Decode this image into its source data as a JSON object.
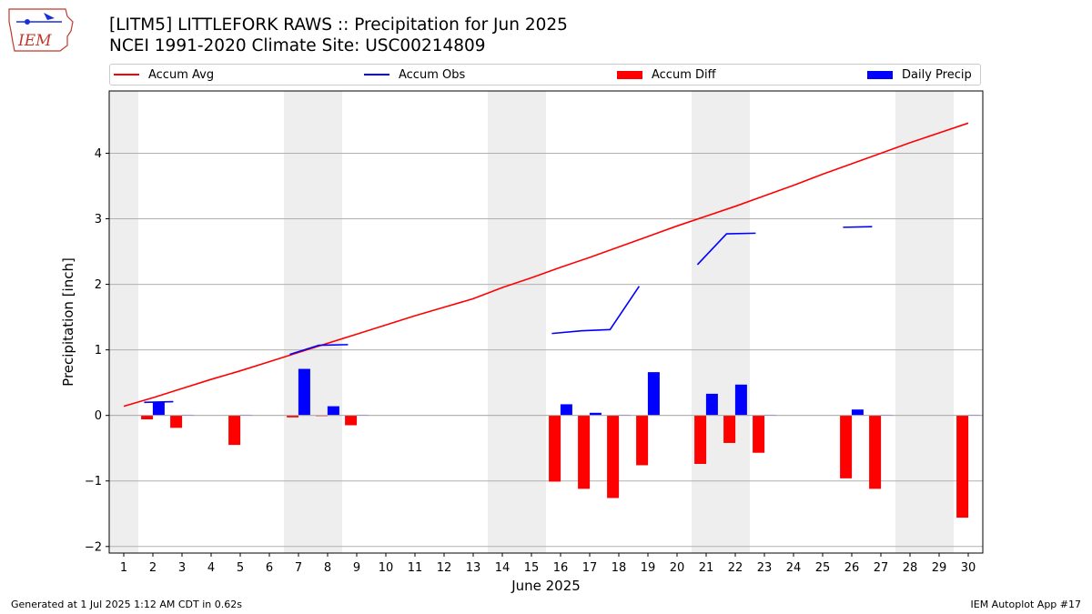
{
  "logo": {
    "text": "IEM"
  },
  "title": {
    "line1": "[LITM5] LITTLEFORK RAWS :: Precipitation for Jun 2025",
    "line2": "NCEI 1991-2020 Climate Site: USC00214809"
  },
  "legend": [
    {
      "label": "Accum Avg",
      "kind": "line",
      "color": "#ff0000"
    },
    {
      "label": "Accum Obs",
      "kind": "line",
      "color": "#0000ff"
    },
    {
      "label": "Accum Diff",
      "kind": "bar",
      "color": "#ff0000"
    },
    {
      "label": "Daily Precip",
      "kind": "bar",
      "color": "#0000ff"
    }
  ],
  "footer": {
    "left": "Generated at 1 Jul 2025 1:12 AM CDT in 0.62s",
    "right": "IEM Autoplot App #17"
  },
  "chart_data": {
    "type": "bar",
    "xlabel": "June 2025",
    "ylabel": "Precipitation [inch]",
    "ylim": [
      -2.1,
      4.95
    ],
    "yticks": [
      -2,
      -1,
      0,
      1,
      2,
      3,
      4
    ],
    "ytick_labels": [
      "−2",
      "−1",
      "0",
      "1",
      "2",
      "3",
      "4"
    ],
    "grid": "horizontal",
    "categories": [
      "1",
      "2",
      "3",
      "4",
      "5",
      "6",
      "7",
      "8",
      "9",
      "10",
      "11",
      "12",
      "13",
      "14",
      "15",
      "16",
      "17",
      "18",
      "19",
      "20",
      "21",
      "22",
      "23",
      "24",
      "25",
      "26",
      "27",
      "28",
      "29",
      "30"
    ],
    "weekend_shading": [
      [
        1,
        1
      ],
      [
        7,
        8
      ],
      [
        14,
        15
      ],
      [
        21,
        22
      ],
      [
        28,
        29
      ]
    ],
    "shade_color": "#eeeeee",
    "accum_avg": [
      0.14,
      0.27,
      0.41,
      0.55,
      0.68,
      0.82,
      0.96,
      1.1,
      1.24,
      1.38,
      1.52,
      1.65,
      1.78,
      1.95,
      2.1,
      2.26,
      2.41,
      2.57,
      2.73,
      2.89,
      3.04,
      3.19,
      3.35,
      3.51,
      3.68,
      3.84,
      4.0,
      4.16,
      4.31,
      4.46
    ],
    "accum_obs_segments": [
      {
        "days": [
          2,
          3
        ],
        "values": [
          0.2,
          0.21
        ]
      },
      {
        "days": [
          7,
          8,
          9
        ],
        "values": [
          0.93,
          1.07,
          1.08
        ]
      },
      {
        "days": [
          16,
          17,
          18,
          19
        ],
        "values": [
          1.25,
          1.29,
          1.31,
          1.97
        ]
      },
      {
        "days": [
          21,
          22,
          23
        ],
        "values": [
          2.3,
          2.77,
          2.78
        ]
      },
      {
        "days": [
          26,
          27
        ],
        "values": [
          2.87,
          2.88
        ]
      }
    ],
    "series": [
      {
        "name": "Accum Diff",
        "color": "#ff0000",
        "offset": -0.2,
        "values": [
          0,
          -0.06,
          -0.19,
          0,
          -0.45,
          0,
          -0.03,
          -0.01,
          -0.15,
          0,
          0,
          0,
          0,
          0,
          0,
          -1.01,
          -1.12,
          -1.26,
          -0.76,
          0,
          -0.74,
          -0.42,
          -0.57,
          0,
          0,
          -0.96,
          -1.12,
          0,
          0,
          -1.56
        ]
      },
      {
        "name": "Daily Precip",
        "color": "#0000ff",
        "offset": 0.2,
        "values": [
          0,
          0.21,
          0.01,
          0,
          0.01,
          0,
          0.71,
          0.14,
          0.01,
          0,
          0,
          0,
          0,
          0,
          0,
          0.17,
          0.04,
          0.01,
          0.66,
          0,
          0.33,
          0.47,
          0.01,
          0,
          0,
          0.09,
          0.01,
          0,
          0,
          0.01
        ]
      }
    ]
  }
}
